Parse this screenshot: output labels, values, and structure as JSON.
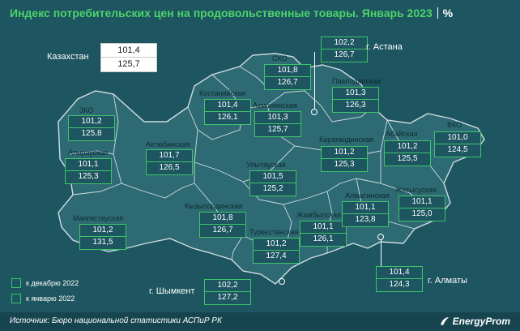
{
  "title": {
    "text": "Индекс потребительских цен на продовольственные товары. Январь 2023",
    "unit": "%"
  },
  "national": {
    "name": "Казахстан",
    "dec": "101,4",
    "jan": "125,7"
  },
  "regions": [
    {
      "id": "zko",
      "name": "ЗКО",
      "dec": "101,2",
      "jan": "125,8"
    },
    {
      "id": "atyrau",
      "name": "Атырауская",
      "dec": "101,1",
      "jan": "125,3"
    },
    {
      "id": "mangistau",
      "name": "Мангистауская",
      "dec": "101,2",
      "jan": "131,5"
    },
    {
      "id": "aktobe",
      "name": "Актюбинская",
      "dec": "101,7",
      "jan": "126,5"
    },
    {
      "id": "kostanay",
      "name": "Костанайская",
      "dec": "101,4",
      "jan": "126,1"
    },
    {
      "id": "sko",
      "name": "СКО",
      "dec": "101,8",
      "jan": "126,7"
    },
    {
      "id": "akmola",
      "name": "Акмолинская",
      "dec": "101,3",
      "jan": "125,7"
    },
    {
      "id": "pavlodar",
      "name": "Павлодарская",
      "dec": "101,3",
      "jan": "126,3"
    },
    {
      "id": "karaganda",
      "name": "Карагандинская",
      "dec": "101,2",
      "jan": "125,3"
    },
    {
      "id": "abay",
      "name": "Абайская",
      "dec": "101,2",
      "jan": "125,5"
    },
    {
      "id": "vko",
      "name": "ВКО",
      "dec": "101,0",
      "jan": "124,5"
    },
    {
      "id": "ulytau",
      "name": "Улытауская",
      "dec": "101,5",
      "jan": "125,2"
    },
    {
      "id": "kyzylorda",
      "name": "Кызылординская",
      "dec": "101,8",
      "jan": "126,7"
    },
    {
      "id": "turkestan",
      "name": "Туркестанская",
      "dec": "101,2",
      "jan": "127,4"
    },
    {
      "id": "zhambyl",
      "name": "Жамбылская",
      "dec": "101,1",
      "jan": "126,1"
    },
    {
      "id": "almaty_obl",
      "name": "Алматинская",
      "dec": "101,1",
      "jan": "123,8"
    },
    {
      "id": "zhetysu",
      "name": "Жетысуская",
      "dec": "101,1",
      "jan": "125,0"
    }
  ],
  "cities": [
    {
      "id": "astana",
      "name": "г. Астана",
      "dec": "102,2",
      "jan": "126,7"
    },
    {
      "id": "shymkent",
      "name": "г. Шымкент",
      "dec": "102,2",
      "jan": "127,2"
    },
    {
      "id": "almaty",
      "name": "г. Алматы",
      "dec": "101,4",
      "jan": "124,3"
    }
  ],
  "legend": {
    "dec": "к декабрю 2022",
    "jan": "к январю 2022"
  },
  "footer": {
    "source": "Источник: Бюро национальной статистики АСПиР РК",
    "brand": "EnergyProm"
  },
  "colors": {
    "background": "#1d5560",
    "map_fill": "#2e6a73",
    "map_border": "#cfdde0",
    "accent": "#3fc46a",
    "title": "#4cd46a"
  }
}
